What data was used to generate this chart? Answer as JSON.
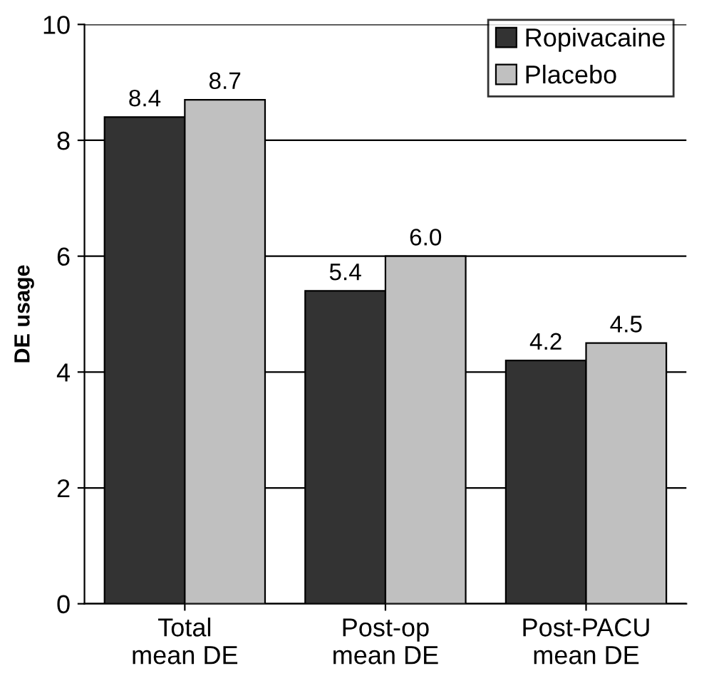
{
  "chart_data": {
    "type": "bar",
    "ylabel": "DE usage",
    "categories": [
      "Total\nmean DE",
      "Post-op\nmean DE",
      "Post-PACU\nmean DE"
    ],
    "series": [
      {
        "name": "Ropivacaine",
        "color": "#333333",
        "values": [
          8.4,
          5.4,
          4.2
        ],
        "value_labels": [
          "8.4",
          "5.4",
          "4.2"
        ]
      },
      {
        "name": "Placebo",
        "color": "#c0c0c0",
        "values": [
          8.7,
          6.0,
          4.5
        ],
        "value_labels": [
          "8.7",
          "6.0",
          "4.5"
        ]
      }
    ],
    "ylim": [
      0,
      10
    ],
    "yticks": [
      0,
      2,
      4,
      6,
      8,
      10
    ],
    "grid": "y",
    "legend": "top right"
  }
}
